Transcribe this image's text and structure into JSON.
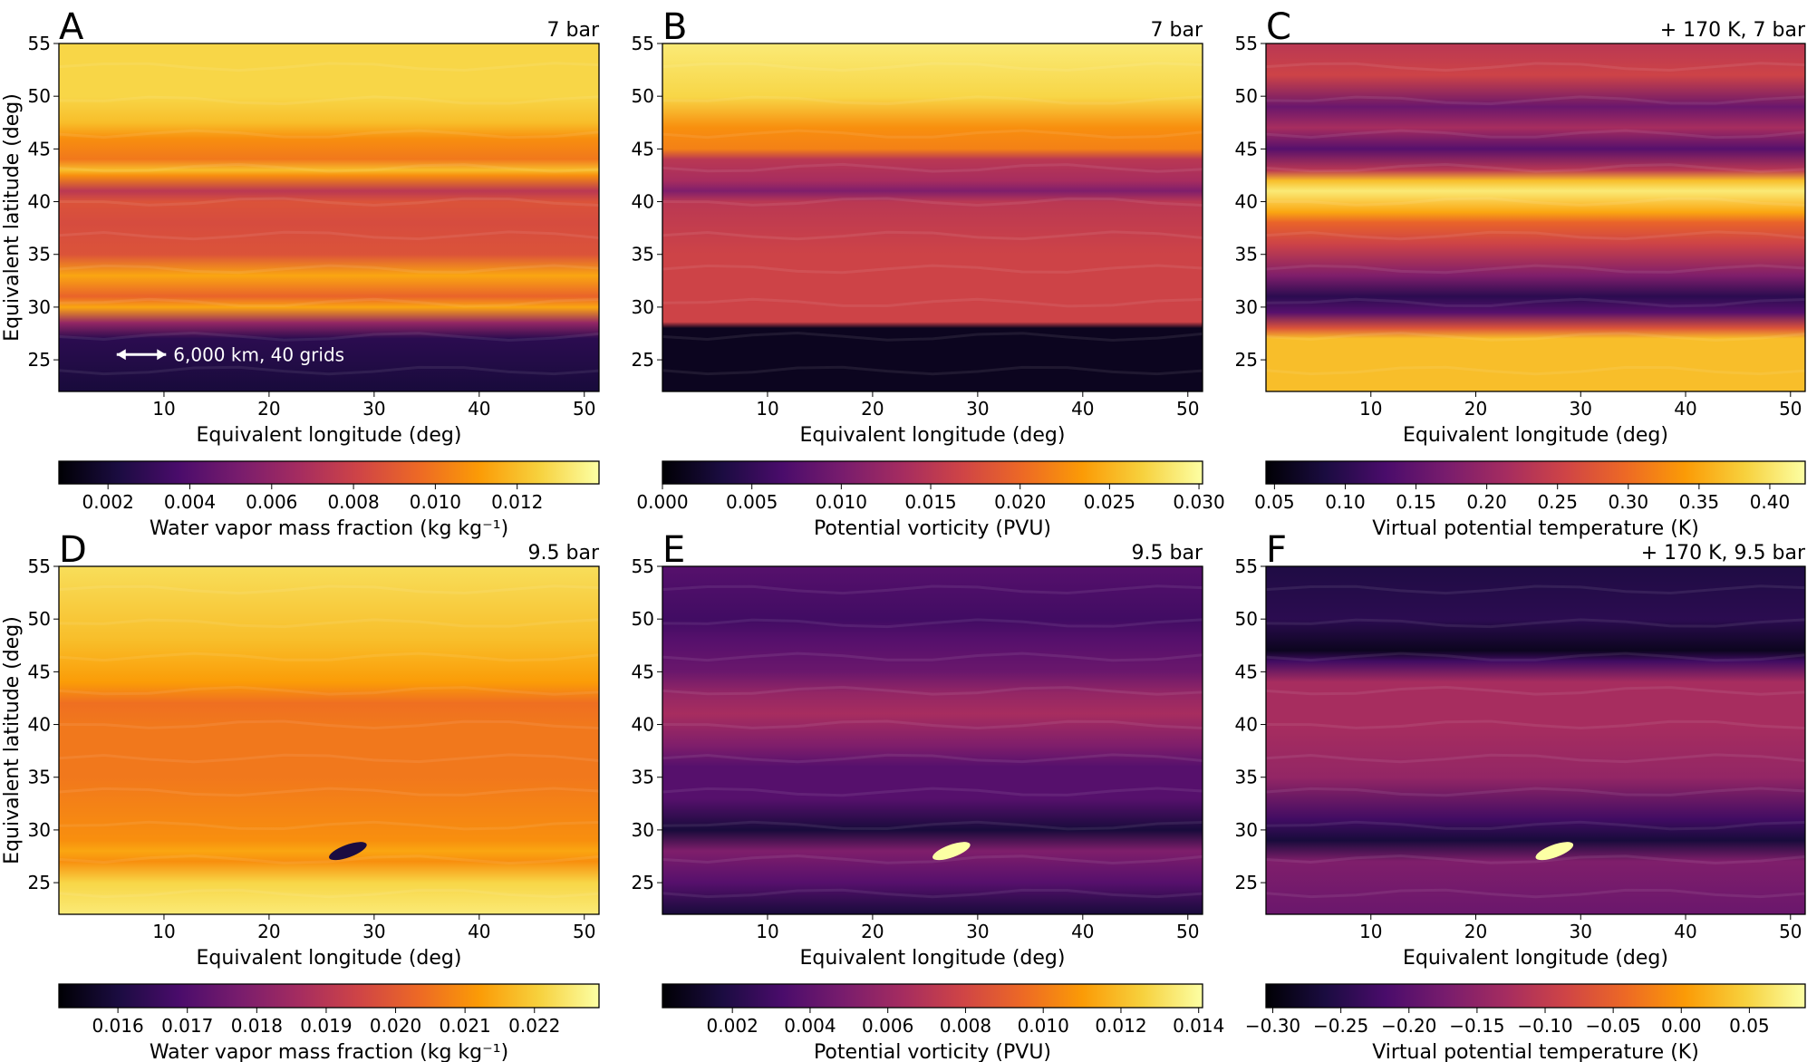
{
  "chart_data": [
    {
      "panel": "A",
      "type": "heatmap",
      "title": "7 bar",
      "xlabel": "Equivalent longitude (deg)",
      "ylabel": "Equivalent latitude (deg)",
      "xlim": [
        0,
        51.4
      ],
      "ylim": [
        22,
        55
      ],
      "xticks": [
        "10",
        "20",
        "30",
        "40",
        "50"
      ],
      "yticks": [
        "25",
        "30",
        "35",
        "40",
        "45",
        "50",
        "55"
      ],
      "annotation": "6,000 km, 40 grids",
      "colorbar": {
        "label": "Water vapor mass fraction (kg kg⁻¹)",
        "range": [
          0.0008,
          0.014
        ],
        "ticks": [
          "0.002",
          "0.004",
          "0.006",
          "0.008",
          "0.010",
          "0.012"
        ],
        "tick_values": [
          0.002,
          0.004,
          0.006,
          0.008,
          0.01,
          0.012
        ]
      }
    },
    {
      "panel": "B",
      "type": "heatmap",
      "title": "7 bar",
      "xlabel": "Equivalent longitude (deg)",
      "ylabel": "",
      "xlim": [
        0,
        51.4
      ],
      "ylim": [
        22,
        55
      ],
      "xticks": [
        "10",
        "20",
        "30",
        "40",
        "50"
      ],
      "yticks": [
        "25",
        "30",
        "35",
        "40",
        "45",
        "50",
        "55"
      ],
      "colorbar": {
        "label": "Potential vorticity (PVU)",
        "range": [
          0,
          0.0302
        ],
        "ticks": [
          "0.000",
          "0.005",
          "0.010",
          "0.015",
          "0.020",
          "0.025",
          "0.030"
        ],
        "tick_values": [
          0,
          0.005,
          0.01,
          0.015,
          0.02,
          0.025,
          0.03
        ]
      }
    },
    {
      "panel": "C",
      "type": "heatmap",
      "title": "+ 170 K, 7 bar",
      "xlabel": "Equivalent longitude (deg)",
      "ylabel": "",
      "xlim": [
        0,
        51.4
      ],
      "ylim": [
        22,
        55
      ],
      "xticks": [
        "10",
        "20",
        "30",
        "40",
        "50"
      ],
      "yticks": [
        "25",
        "30",
        "35",
        "40",
        "45",
        "50",
        "55"
      ],
      "colorbar": {
        "label": "Virtual potential temperature (K)",
        "range": [
          0.044,
          0.425
        ],
        "ticks": [
          "0.05",
          "0.10",
          "0.15",
          "0.20",
          "0.25",
          "0.30",
          "0.35",
          "0.40"
        ],
        "tick_values": [
          0.05,
          0.1,
          0.15,
          0.2,
          0.25,
          0.3,
          0.35,
          0.4
        ]
      }
    },
    {
      "panel": "D",
      "type": "heatmap",
      "title": "9.5 bar",
      "xlabel": "Equivalent longitude (deg)",
      "ylabel": "Equivalent latitude (deg)",
      "xlim": [
        0,
        51.4
      ],
      "ylim": [
        22,
        55
      ],
      "xticks": [
        "10",
        "20",
        "30",
        "40",
        "50"
      ],
      "yticks": [
        "25",
        "30",
        "35",
        "40",
        "45",
        "50",
        "55"
      ],
      "colorbar": {
        "label": "Water vapor mass fraction (kg kg⁻¹)",
        "range": [
          0.01515,
          0.02293
        ],
        "ticks": [
          "0.016",
          "0.017",
          "0.018",
          "0.019",
          "0.020",
          "0.021",
          "0.022"
        ],
        "tick_values": [
          0.016,
          0.017,
          0.018,
          0.019,
          0.02,
          0.021,
          0.022
        ]
      }
    },
    {
      "panel": "E",
      "type": "heatmap",
      "title": "9.5 bar",
      "xlabel": "Equivalent longitude (deg)",
      "ylabel": "",
      "xlim": [
        0,
        51.4
      ],
      "ylim": [
        22,
        55
      ],
      "xticks": [
        "10",
        "20",
        "30",
        "40",
        "50"
      ],
      "yticks": [
        "25",
        "30",
        "35",
        "40",
        "45",
        "50",
        "55"
      ],
      "colorbar": {
        "label": "Potential vorticity (PVU)",
        "range": [
          0.0002,
          0.0141
        ],
        "ticks": [
          "0.002",
          "0.004",
          "0.006",
          "0.008",
          "0.010",
          "0.012",
          "0.014"
        ],
        "tick_values": [
          0.002,
          0.004,
          0.006,
          0.008,
          0.01,
          0.012,
          0.014
        ]
      }
    },
    {
      "panel": "F",
      "type": "heatmap",
      "title": "+ 170 K, 9.5 bar",
      "xlabel": "Equivalent longitude (deg)",
      "ylabel": "",
      "xlim": [
        0,
        51.4
      ],
      "ylim": [
        22,
        55
      ],
      "xticks": [
        "10",
        "20",
        "30",
        "40",
        "50"
      ],
      "yticks": [
        "25",
        "30",
        "35",
        "40",
        "45",
        "50",
        "55"
      ],
      "colorbar": {
        "label": "Virtual potential temperature (K)",
        "range": [
          -0.305,
          0.091
        ],
        "ticks": [
          "−0.30",
          "−0.25",
          "−0.20",
          "−0.15",
          "−0.10",
          "−0.05",
          "0.00",
          "0.05"
        ],
        "tick_values": [
          -0.3,
          -0.25,
          -0.2,
          -0.15,
          -0.1,
          -0.05,
          0.0,
          0.05
        ]
      }
    }
  ],
  "colormap": "inferno"
}
